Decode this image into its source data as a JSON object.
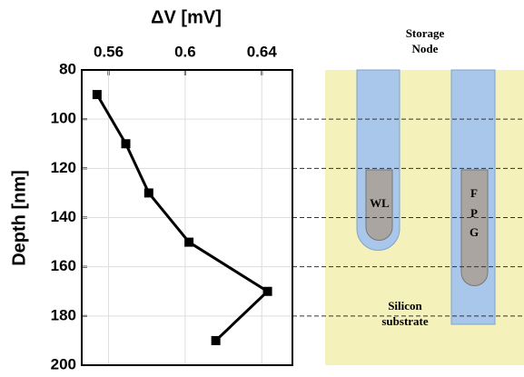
{
  "chart_data": {
    "type": "line",
    "xlabel": "ΔV [mV]",
    "ylabel": "Depth [nm]",
    "x": [
      0.554,
      0.569,
      0.581,
      0.602,
      0.643,
      0.616
    ],
    "series": [
      {
        "values": [
          90,
          110,
          130,
          150,
          170,
          190
        ],
        "color": "#000000"
      }
    ],
    "xlim": [
      0.546,
      0.656
    ],
    "xticks": [
      0.56,
      0.6,
      0.64
    ],
    "ylim": [
      80,
      200
    ],
    "yticks": [
      80,
      100,
      120,
      140,
      160,
      180,
      200
    ],
    "y_inverted": true,
    "grid": true
  },
  "diagram": {
    "storage_node": [
      "Storage",
      "Node"
    ],
    "wl": "WL",
    "fpg": [
      "F",
      "P",
      "G"
    ],
    "substrate": [
      "Silicon",
      "substrate"
    ]
  }
}
